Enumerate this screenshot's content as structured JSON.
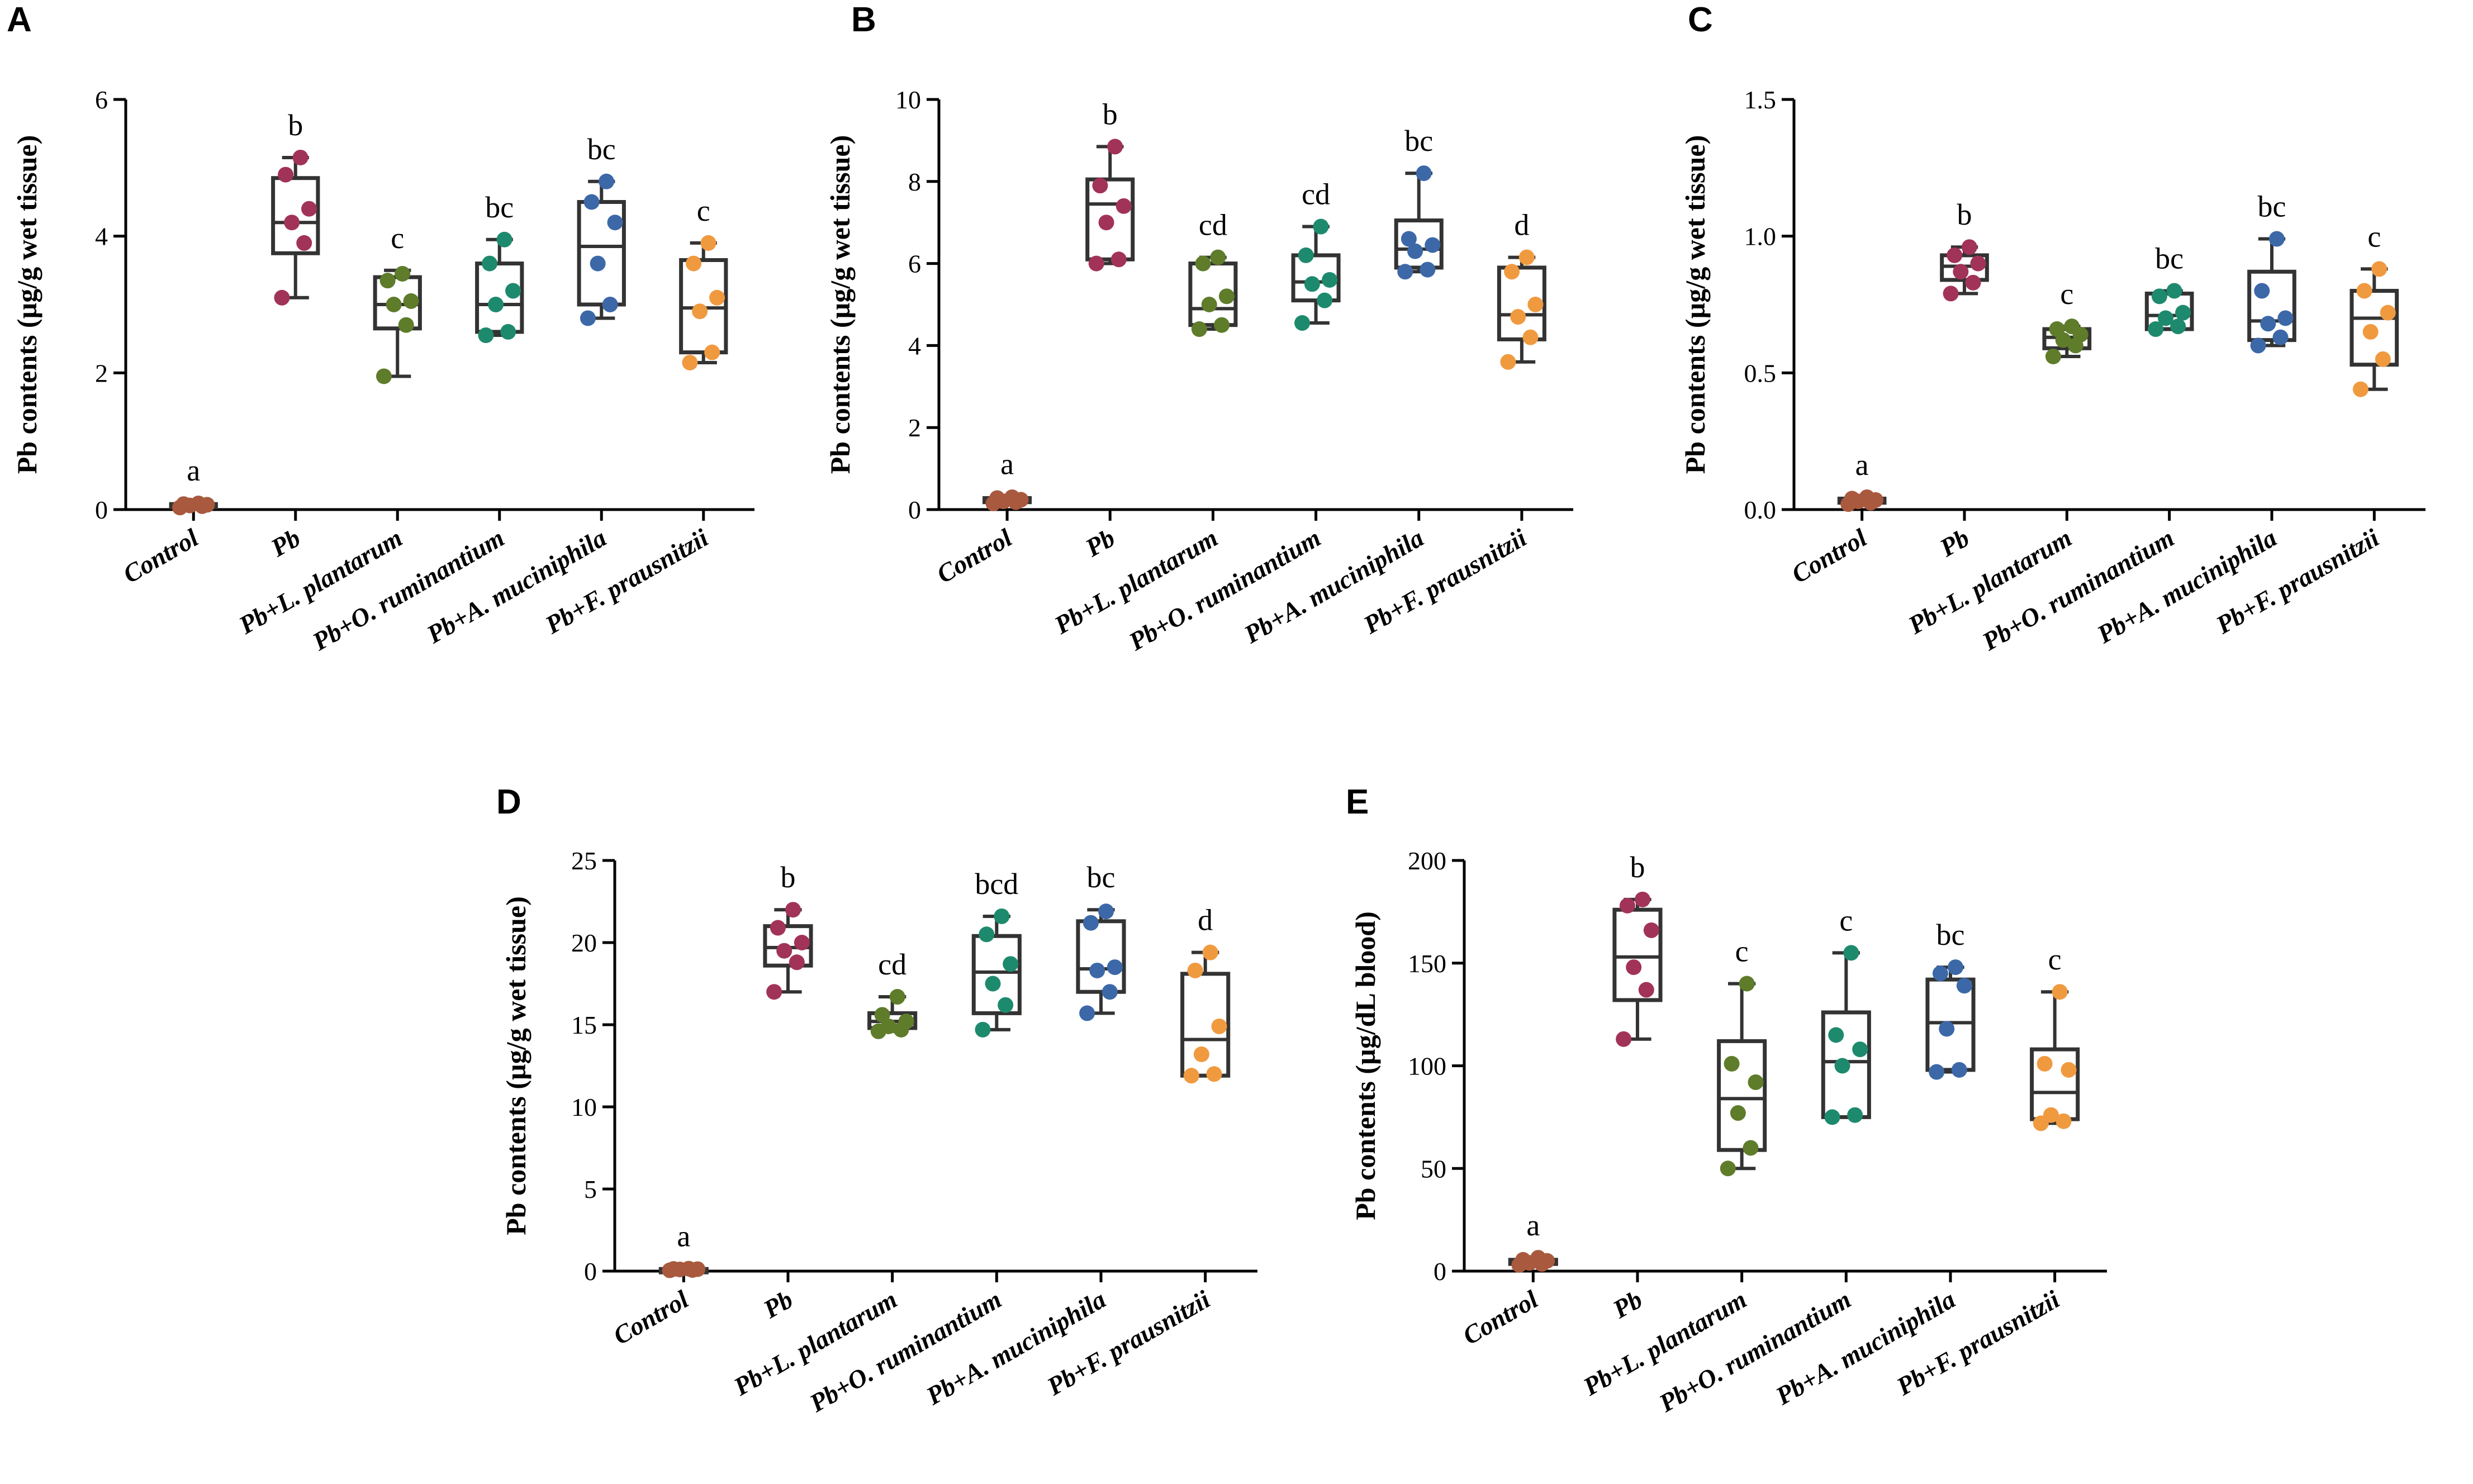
{
  "figure": {
    "colors": {
      "control": "#a9593e",
      "pb": "#a23358",
      "lplantarum": "#5e7c2a",
      "oruminantium": "#1e8a6d",
      "amuciniphila": "#3c68a8",
      "fprausnitzii": "#f09a40",
      "box": "#333333"
    }
  },
  "chart_data": [
    {
      "type": "box",
      "panel": "A",
      "ylabel": "Pb contents (µg/g wet tissue)",
      "ylim": [
        0,
        6
      ],
      "yticks": [
        0,
        2,
        4,
        6
      ],
      "ytick_labels": [
        "0",
        "2",
        "4",
        "6"
      ],
      "categories": [
        "Control",
        "Pb",
        "Pb+L. plantarum",
        "Pb+O. ruminantium",
        "Pb+A. muciniphila",
        "Pb+F. prausnitzii"
      ],
      "series": [
        {
          "name": "Control",
          "color": "control",
          "sig": "a",
          "min": 0.02,
          "q1": 0.04,
          "median": 0.06,
          "q3": 0.08,
          "max": 0.1,
          "points": [
            0.03,
            0.05,
            0.06,
            0.07,
            0.08,
            0.09
          ]
        },
        {
          "name": "Pb",
          "color": "pb",
          "sig": "b",
          "min": 3.1,
          "q1": 3.75,
          "median": 4.2,
          "q3": 4.85,
          "max": 5.15,
          "points": [
            3.1,
            3.9,
            4.2,
            4.4,
            4.9,
            5.15
          ]
        },
        {
          "name": "Pb+L. plantarum",
          "color": "lplantarum",
          "sig": "c",
          "min": 1.95,
          "q1": 2.65,
          "median": 3.0,
          "q3": 3.4,
          "max": 3.5,
          "points": [
            1.95,
            2.7,
            3.0,
            3.05,
            3.35,
            3.45
          ]
        },
        {
          "name": "Pb+O. ruminantium",
          "color": "oruminantium",
          "sig": "bc",
          "min": 2.55,
          "q1": 2.6,
          "median": 3.0,
          "q3": 3.6,
          "max": 3.95,
          "points": [
            2.55,
            2.6,
            3.0,
            3.2,
            3.6,
            3.95
          ]
        },
        {
          "name": "Pb+A. muciniphila",
          "color": "amuciniphila",
          "sig": "bc",
          "min": 2.8,
          "q1": 3.0,
          "median": 3.85,
          "q3": 4.5,
          "max": 4.8,
          "points": [
            2.8,
            3.0,
            3.6,
            4.2,
            4.5,
            4.8
          ]
        },
        {
          "name": "Pb+F. prausnitzii",
          "color": "fprausnitzii",
          "sig": "c",
          "min": 2.15,
          "q1": 2.3,
          "median": 2.95,
          "q3": 3.65,
          "max": 3.9,
          "points": [
            2.15,
            2.3,
            2.9,
            3.1,
            3.6,
            3.9
          ]
        }
      ]
    },
    {
      "type": "box",
      "panel": "B",
      "ylabel": "Pb contents (µg/g wet tissue)",
      "ylim": [
        0,
        10
      ],
      "yticks": [
        0,
        2,
        4,
        6,
        8,
        10
      ],
      "ytick_labels": [
        "0",
        "2",
        "4",
        "6",
        "8",
        "10"
      ],
      "categories": [
        "Control",
        "Pb",
        "Pb+L. plantarum",
        "Pb+O. ruminantium",
        "Pb+A. muciniphila",
        "Pb+F. prausnitzii"
      ],
      "series": [
        {
          "name": "Control",
          "color": "control",
          "sig": "a",
          "min": 0.15,
          "q1": 0.18,
          "median": 0.22,
          "q3": 0.28,
          "max": 0.32,
          "points": [
            0.15,
            0.18,
            0.2,
            0.24,
            0.28,
            0.3
          ]
        },
        {
          "name": "Pb",
          "color": "pb",
          "sig": "b",
          "min": 6.0,
          "q1": 6.1,
          "median": 7.45,
          "q3": 8.05,
          "max": 8.85,
          "points": [
            6.0,
            6.1,
            7.0,
            7.4,
            7.9,
            8.85
          ]
        },
        {
          "name": "Pb+L. plantarum",
          "color": "lplantarum",
          "sig": "cd",
          "min": 4.4,
          "q1": 4.5,
          "median": 4.9,
          "q3": 6.0,
          "max": 6.15,
          "points": [
            4.4,
            4.5,
            5.0,
            5.2,
            6.0,
            6.15
          ]
        },
        {
          "name": "Pb+O. ruminantium",
          "color": "oruminantium",
          "sig": "cd",
          "min": 4.55,
          "q1": 5.1,
          "median": 5.55,
          "q3": 6.2,
          "max": 6.9,
          "points": [
            4.55,
            5.1,
            5.5,
            5.6,
            6.2,
            6.9
          ]
        },
        {
          "name": "Pb+A. muciniphila",
          "color": "amuciniphila",
          "sig": "bc",
          "min": 5.8,
          "q1": 5.9,
          "median": 6.35,
          "q3": 7.05,
          "max": 8.2,
          "points": [
            5.8,
            5.85,
            6.3,
            6.45,
            6.6,
            8.2
          ]
        },
        {
          "name": "Pb+F. prausnitzii",
          "color": "fprausnitzii",
          "sig": "d",
          "min": 3.6,
          "q1": 4.15,
          "median": 4.75,
          "q3": 5.9,
          "max": 6.15,
          "points": [
            3.6,
            4.2,
            4.7,
            5.0,
            5.8,
            6.15
          ]
        }
      ]
    },
    {
      "type": "box",
      "panel": "C",
      "ylabel": "Pb contents (µg/g wet tissue)",
      "ylim": [
        0,
        1.5
      ],
      "yticks": [
        0,
        0.5,
        1.0,
        1.5
      ],
      "ytick_labels": [
        "0.0",
        "0.5",
        "1.0",
        "1.5"
      ],
      "categories": [
        "Control",
        "Pb",
        "Pb+L. plantarum",
        "Pb+O. ruminantium",
        "Pb+A. muciniphila",
        "Pb+F. prausnitzii"
      ],
      "series": [
        {
          "name": "Control",
          "color": "control",
          "sig": "a",
          "min": 0.02,
          "q1": 0.025,
          "median": 0.03,
          "q3": 0.04,
          "max": 0.045,
          "points": [
            0.02,
            0.025,
            0.03,
            0.035,
            0.04,
            0.045
          ]
        },
        {
          "name": "Pb",
          "color": "pb",
          "sig": "b",
          "min": 0.79,
          "q1": 0.84,
          "median": 0.89,
          "q3": 0.93,
          "max": 0.96,
          "points": [
            0.79,
            0.83,
            0.87,
            0.9,
            0.93,
            0.96
          ]
        },
        {
          "name": "Pb+L. plantarum",
          "color": "lplantarum",
          "sig": "c",
          "min": 0.56,
          "q1": 0.59,
          "median": 0.63,
          "q3": 0.66,
          "max": 0.67,
          "points": [
            0.56,
            0.6,
            0.62,
            0.64,
            0.66,
            0.67
          ]
        },
        {
          "name": "Pb+O. ruminantium",
          "color": "oruminantium",
          "sig": "bc",
          "min": 0.66,
          "q1": 0.66,
          "median": 0.71,
          "q3": 0.79,
          "max": 0.8,
          "points": [
            0.66,
            0.67,
            0.7,
            0.72,
            0.78,
            0.8
          ]
        },
        {
          "name": "Pb+A. muciniphila",
          "color": "amuciniphila",
          "sig": "bc",
          "min": 0.6,
          "q1": 0.62,
          "median": 0.69,
          "q3": 0.87,
          "max": 0.99,
          "points": [
            0.6,
            0.63,
            0.68,
            0.7,
            0.8,
            0.99
          ]
        },
        {
          "name": "Pb+F. prausnitzii",
          "color": "fprausnitzii",
          "sig": "c",
          "min": 0.44,
          "q1": 0.53,
          "median": 0.7,
          "q3": 0.8,
          "max": 0.88,
          "points": [
            0.44,
            0.55,
            0.65,
            0.72,
            0.8,
            0.88
          ]
        }
      ]
    },
    {
      "type": "box",
      "panel": "D",
      "ylabel": "Pb contents (µg/g wet tissue)",
      "ylim": [
        0,
        25
      ],
      "yticks": [
        0,
        5,
        10,
        15,
        20,
        25
      ],
      "ytick_labels": [
        "0",
        "5",
        "10",
        "15",
        "20",
        "25"
      ],
      "categories": [
        "Control",
        "Pb",
        "Pb+L. plantarum",
        "Pb+O. ruminantium",
        "Pb+A. muciniphila",
        "Pb+F. prausnitzii"
      ],
      "series": [
        {
          "name": "Control",
          "color": "control",
          "sig": "a",
          "min": 0.05,
          "q1": 0.08,
          "median": 0.1,
          "q3": 0.13,
          "max": 0.15,
          "points": [
            0.05,
            0.07,
            0.1,
            0.12,
            0.13,
            0.15
          ]
        },
        {
          "name": "Pb",
          "color": "pb",
          "sig": "b",
          "min": 17.0,
          "q1": 18.6,
          "median": 19.7,
          "q3": 21.0,
          "max": 22.0,
          "points": [
            17.0,
            18.8,
            19.5,
            20.0,
            20.9,
            22.0
          ]
        },
        {
          "name": "Pb+L. plantarum",
          "color": "lplantarum",
          "sig": "cd",
          "min": 14.6,
          "q1": 14.8,
          "median": 15.2,
          "q3": 15.7,
          "max": 16.7,
          "points": [
            14.6,
            14.7,
            14.9,
            15.2,
            15.6,
            16.7
          ]
        },
        {
          "name": "Pb+O. ruminantium",
          "color": "oruminantium",
          "sig": "bcd",
          "min": 14.7,
          "q1": 15.7,
          "median": 18.2,
          "q3": 20.4,
          "max": 21.6,
          "points": [
            14.7,
            16.2,
            17.5,
            18.7,
            20.5,
            21.6
          ]
        },
        {
          "name": "Pb+A. muciniphila",
          "color": "amuciniphila",
          "sig": "bc",
          "min": 15.7,
          "q1": 17.0,
          "median": 18.4,
          "q3": 21.3,
          "max": 22.0,
          "points": [
            15.7,
            17.0,
            18.3,
            18.5,
            21.2,
            21.9
          ]
        },
        {
          "name": "Pb+F. prausnitzii",
          "color": "fprausnitzii",
          "sig": "d",
          "min": 11.9,
          "q1": 11.9,
          "median": 14.1,
          "q3": 18.1,
          "max": 19.4,
          "points": [
            11.9,
            12.0,
            13.2,
            14.9,
            18.3,
            19.4
          ]
        }
      ]
    },
    {
      "type": "box",
      "panel": "E",
      "ylabel": "Pb contents (µg/dL blood)",
      "ylim": [
        0,
        200
      ],
      "yticks": [
        0,
        50,
        100,
        150,
        200
      ],
      "ytick_labels": [
        "0",
        "50",
        "100",
        "150",
        "200"
      ],
      "categories": [
        "Control",
        "Pb",
        "Pb+L. plantarum",
        "Pb+O. ruminantium",
        "Pb+A. muciniphila",
        "Pb+F. prausnitzii"
      ],
      "series": [
        {
          "name": "Control",
          "color": "control",
          "sig": "a",
          "min": 3,
          "q1": 3.5,
          "median": 4.5,
          "q3": 5.5,
          "max": 6.5,
          "points": [
            3,
            3.5,
            4,
            5,
            5.5,
            6.5
          ]
        },
        {
          "name": "Pb",
          "color": "pb",
          "sig": "b",
          "min": 113,
          "q1": 132,
          "median": 153,
          "q3": 176,
          "max": 181,
          "points": [
            113,
            137,
            148,
            166,
            178,
            181
          ]
        },
        {
          "name": "Pb+L. plantarum",
          "color": "lplantarum",
          "sig": "c",
          "min": 50,
          "q1": 59,
          "median": 84,
          "q3": 112,
          "max": 140,
          "points": [
            50,
            60,
            77,
            92,
            101,
            140
          ]
        },
        {
          "name": "Pb+O. ruminantium",
          "color": "oruminantium",
          "sig": "c",
          "min": 75,
          "q1": 75,
          "median": 102,
          "q3": 126,
          "max": 155,
          "points": [
            75,
            76,
            100,
            108,
            115,
            155
          ]
        },
        {
          "name": "Pb+A. muciniphila",
          "color": "amuciniphila",
          "sig": "bc",
          "min": 97,
          "q1": 98,
          "median": 121,
          "q3": 142,
          "max": 148,
          "points": [
            97,
            98,
            118,
            139,
            145,
            148
          ]
        },
        {
          "name": "Pb+F. prausnitzii",
          "color": "fprausnitzii",
          "sig": "c",
          "min": 72,
          "q1": 74,
          "median": 87,
          "q3": 108,
          "max": 136,
          "points": [
            72,
            73,
            76,
            98,
            101,
            136
          ]
        }
      ]
    }
  ]
}
